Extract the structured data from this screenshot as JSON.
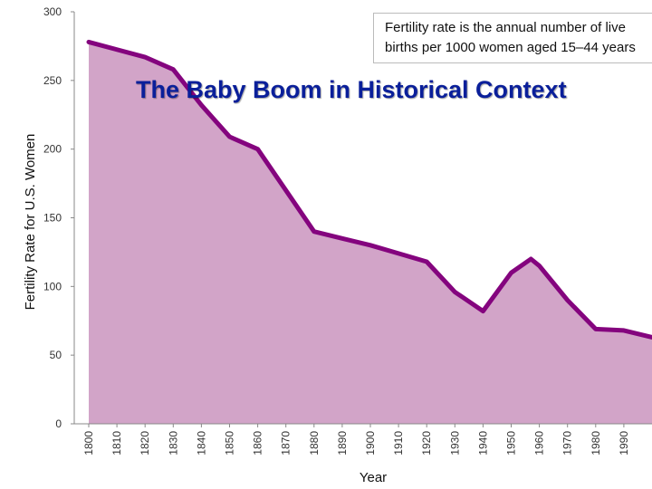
{
  "slide_title": "The Baby Boom in Historical Context",
  "note": "Fertility rate is the annual number of live\nbirths per 1000 women aged 15–44 years",
  "colors": {
    "fill": "#d2a4c8",
    "line": "#84047e",
    "grid": "#cccccc",
    "title": "#0a1f9a"
  },
  "chart_data": {
    "type": "area",
    "xlabel": "Year",
    "ylabel": "Fertility Rate for U.S. Women",
    "xlim": [
      1800,
      2000
    ],
    "ylim": [
      0,
      300
    ],
    "x_ticks": [
      1800,
      1810,
      1820,
      1830,
      1840,
      1850,
      1860,
      1870,
      1880,
      1890,
      1900,
      1910,
      1920,
      1930,
      1940,
      1950,
      1960,
      1970,
      1980,
      1990
    ],
    "y_ticks": [
      0,
      50,
      100,
      150,
      200,
      250,
      300
    ],
    "grid": "none",
    "x": [
      1800,
      1820,
      1830,
      1840,
      1850,
      1860,
      1880,
      1890,
      1900,
      1910,
      1920,
      1930,
      1940,
      1950,
      1957,
      1960,
      1970,
      1980,
      1990,
      2000
    ],
    "values": [
      278,
      267,
      258,
      232,
      209,
      200,
      140,
      135,
      130,
      124,
      118,
      96,
      82,
      110,
      120,
      115,
      90,
      69,
      68,
      63
    ]
  }
}
